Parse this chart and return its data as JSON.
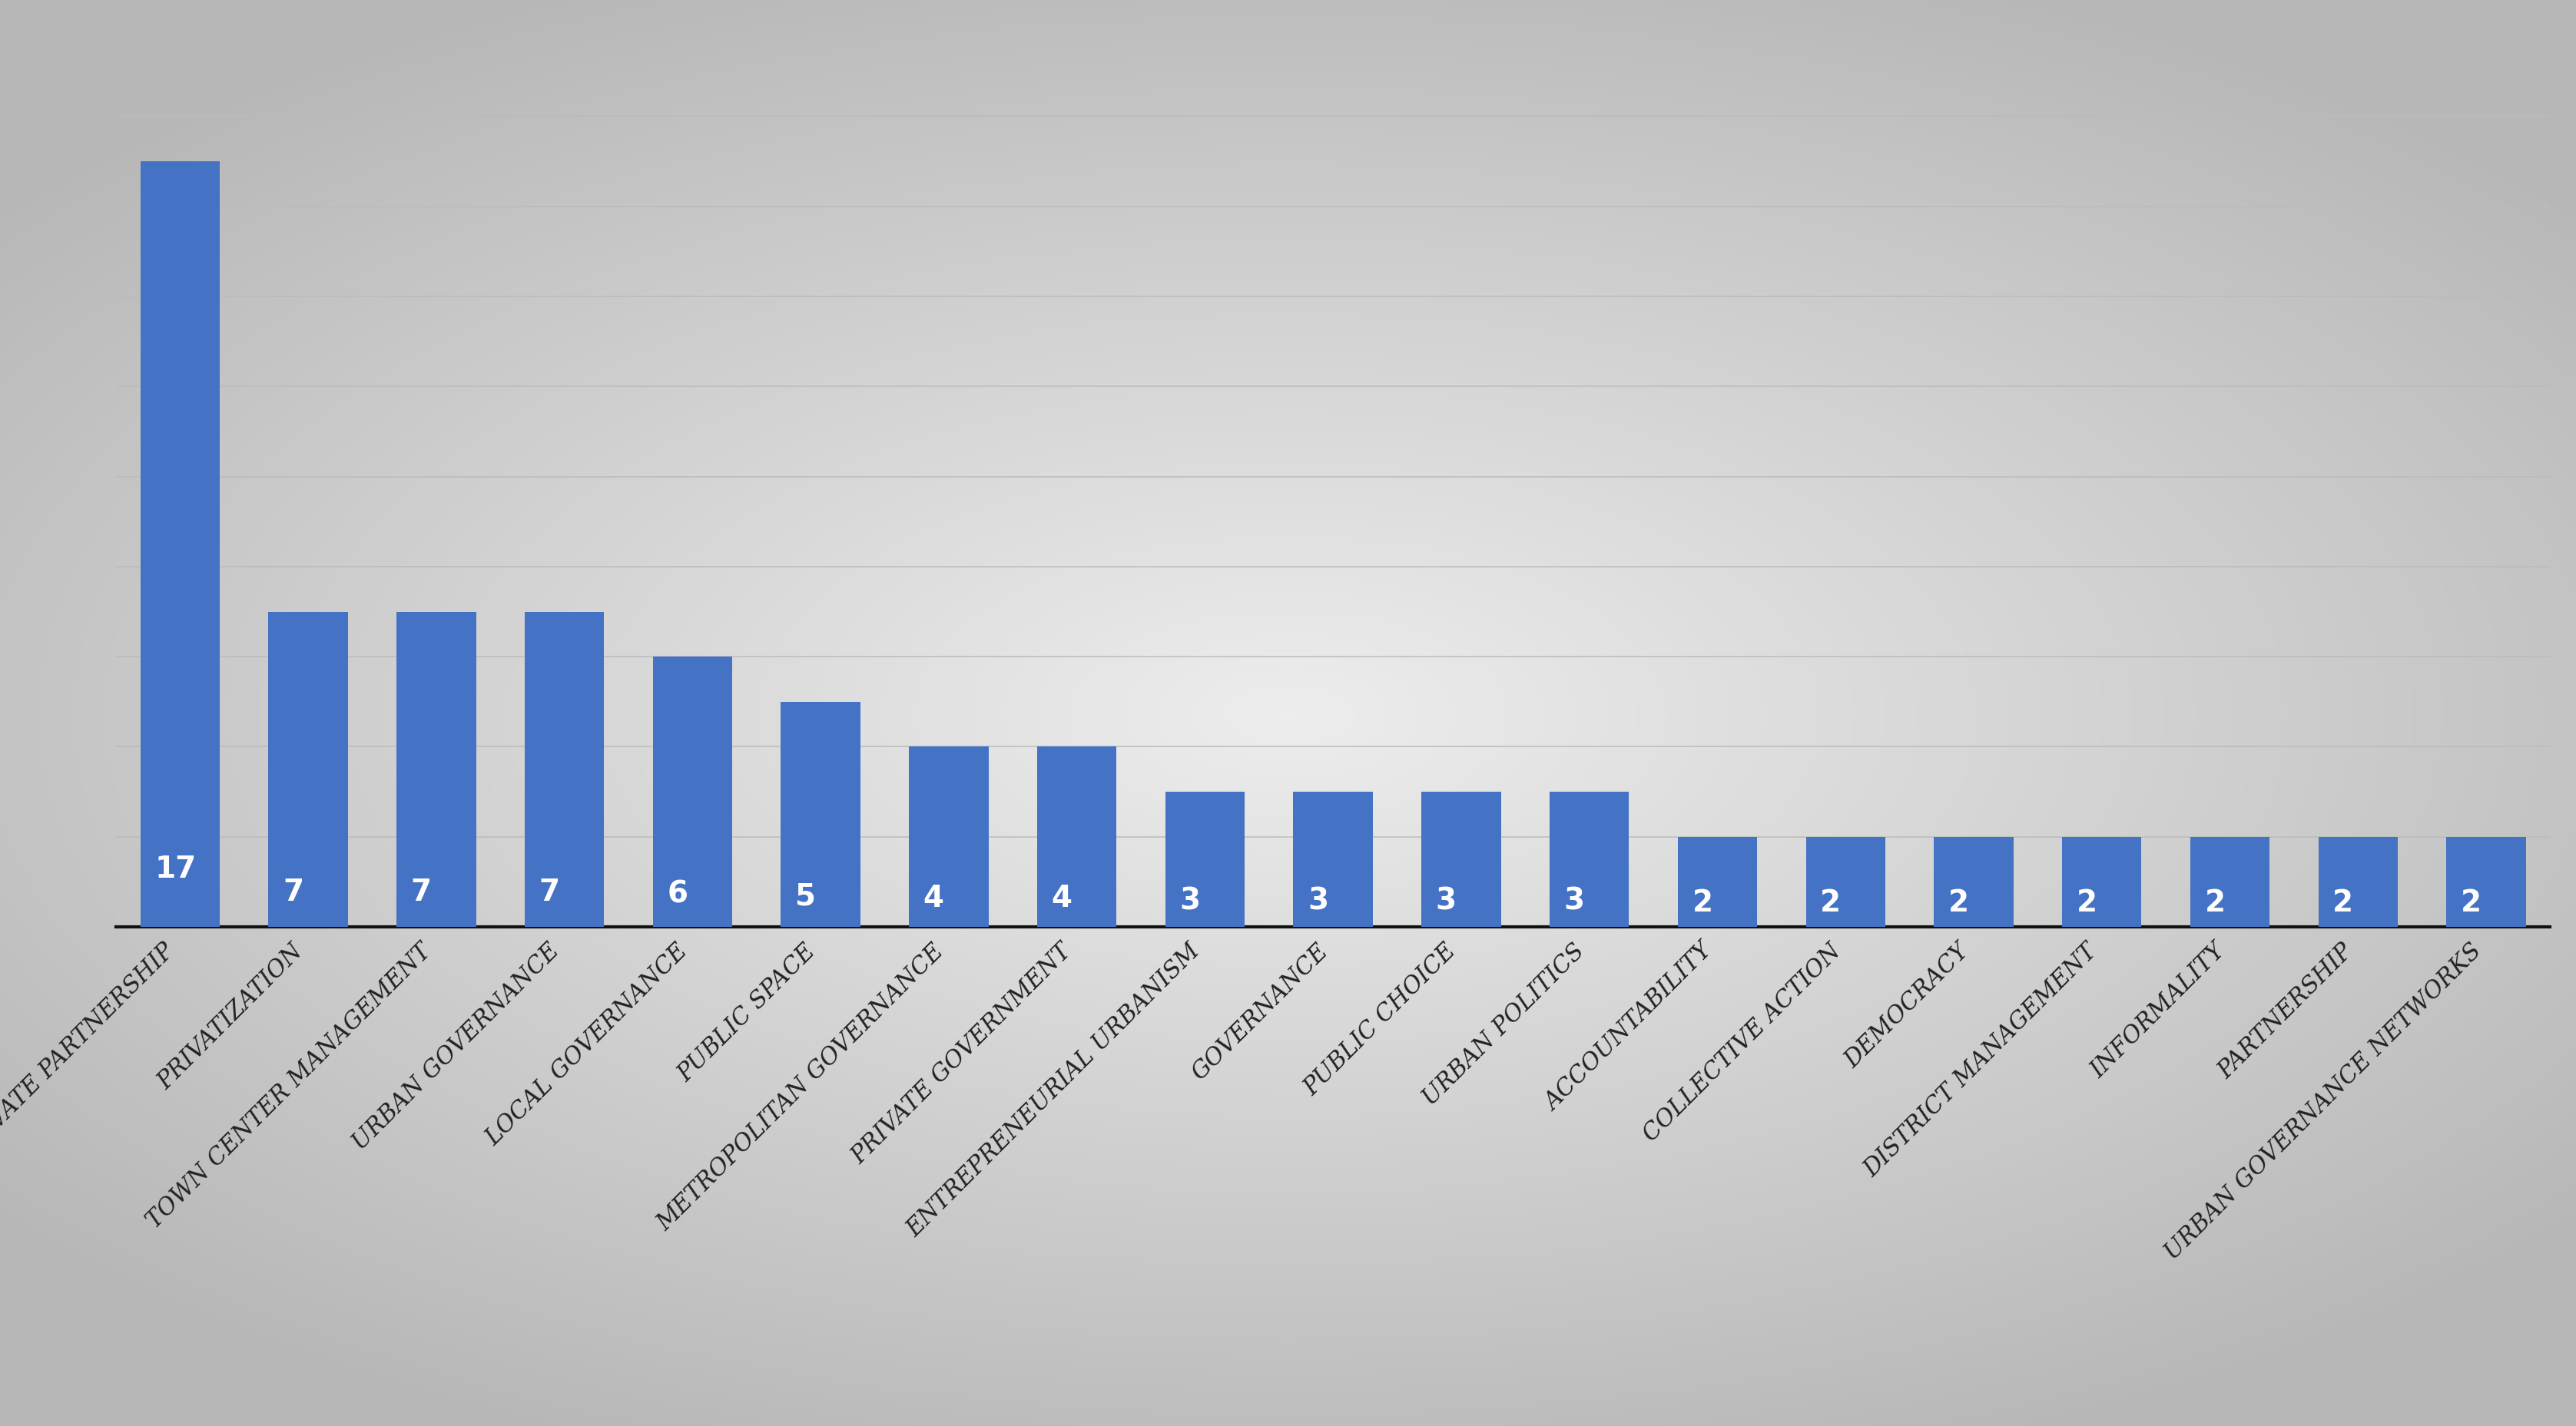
{
  "categories": [
    "Public-Private Partnership",
    "Privatization",
    "Town Center Management",
    "Urban Governance",
    "Local Governance",
    "Public Space",
    "Metropolitan Governance",
    "Private Government",
    "Entrepreneurial Urbanism",
    "Governance",
    "Public Choice",
    "Urban Politics",
    "Accountability",
    "Collective Action",
    "Democracy",
    "District Management",
    "Informality",
    "Partnership",
    "Urban Governance Networks"
  ],
  "values": [
    17,
    7,
    7,
    7,
    6,
    5,
    4,
    4,
    3,
    3,
    3,
    3,
    2,
    2,
    2,
    2,
    2,
    2,
    2
  ],
  "bar_color": "#4472C4",
  "label_color": "#FFFFFF",
  "label_fontsize": 28,
  "tick_fontsize": 22,
  "ylim_max": 19,
  "ytick_vals": [
    2,
    4,
    6,
    8,
    10,
    12,
    14,
    16,
    18
  ],
  "grid_color": "#BBBBBB",
  "bar_width": 0.62,
  "figure_width": 33.53,
  "figure_height": 18.57
}
